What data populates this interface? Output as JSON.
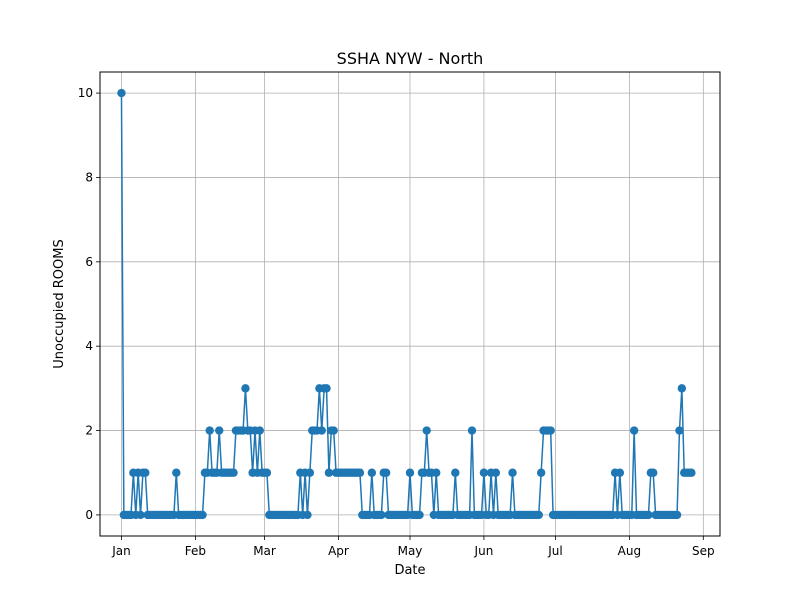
{
  "chart_data": {
    "type": "line",
    "title": "SSHA NYW - North",
    "xlabel": "Date",
    "ylabel": "Unoccupied ROOMS",
    "x_range": [
      "2023-12-23",
      "2024-09-08"
    ],
    "ylim": [
      -0.5,
      10.5
    ],
    "x_ticks": [
      {
        "date": "2024-01-01",
        "label": "Jan"
      },
      {
        "date": "2024-02-01",
        "label": "Feb"
      },
      {
        "date": "2024-03-01",
        "label": "Mar"
      },
      {
        "date": "2024-04-01",
        "label": "Apr"
      },
      {
        "date": "2024-05-01",
        "label": "May"
      },
      {
        "date": "2024-06-01",
        "label": "Jun"
      },
      {
        "date": "2024-07-01",
        "label": "Jul"
      },
      {
        "date": "2024-08-01",
        "label": "Aug"
      },
      {
        "date": "2024-09-01",
        "label": "Sep"
      }
    ],
    "y_ticks": [
      0,
      2,
      4,
      6,
      8,
      10
    ],
    "grid": true,
    "color": "#1f77b4",
    "marker": "circle",
    "series": [
      {
        "start_date": "2024-01-01",
        "step_days": 1,
        "values": [
          10,
          0,
          0,
          0,
          0,
          1,
          0,
          1,
          0,
          1,
          1,
          0,
          0,
          0,
          0,
          0,
          0,
          0,
          0,
          0,
          0,
          0,
          0,
          1,
          0,
          0,
          0,
          0,
          0,
          0,
          0,
          0,
          0,
          0,
          0,
          1,
          1,
          2,
          1,
          1,
          1,
          2,
          1,
          1,
          1,
          1,
          1,
          1,
          2,
          2,
          2,
          2,
          3,
          2,
          2,
          1,
          2,
          1,
          2,
          1,
          1,
          1,
          0,
          0,
          0,
          0,
          0,
          0,
          0,
          0,
          0,
          0,
          0,
          0,
          0,
          1,
          0,
          1,
          0,
          1,
          2,
          2,
          2,
          3,
          2,
          3,
          3,
          1,
          2,
          2,
          1,
          1,
          1,
          1,
          1,
          1,
          1,
          1,
          1,
          1,
          1,
          0,
          0,
          0,
          0,
          1,
          0,
          0,
          0,
          0,
          1,
          1,
          0,
          0,
          0,
          0,
          0,
          0,
          0,
          0,
          0,
          1,
          0,
          0,
          0,
          0,
          1,
          1,
          2,
          1,
          1,
          0,
          1,
          0,
          0,
          0,
          0,
          0,
          0,
          0,
          1,
          0,
          0,
          0,
          0,
          0,
          0,
          2,
          0,
          0,
          0,
          0,
          1,
          0,
          0,
          1,
          0,
          1,
          0,
          0,
          0,
          0,
          0,
          0,
          1,
          0,
          0,
          0,
          0,
          0,
          0,
          0,
          0,
          0,
          0,
          0,
          1,
          2,
          2,
          2,
          2,
          0,
          0,
          0,
          0,
          0,
          0,
          0,
          0,
          0,
          0,
          0,
          0,
          0,
          0,
          0,
          0,
          0,
          0,
          0,
          0,
          0,
          0,
          0,
          0,
          0,
          0,
          1,
          0,
          1,
          0,
          0,
          0,
          0,
          0,
          2,
          0,
          0,
          0,
          0,
          0,
          0,
          1,
          1,
          0,
          0,
          0,
          0,
          0,
          0,
          0,
          0,
          0,
          0,
          2,
          3,
          1,
          1,
          1,
          1
        ]
      }
    ]
  }
}
